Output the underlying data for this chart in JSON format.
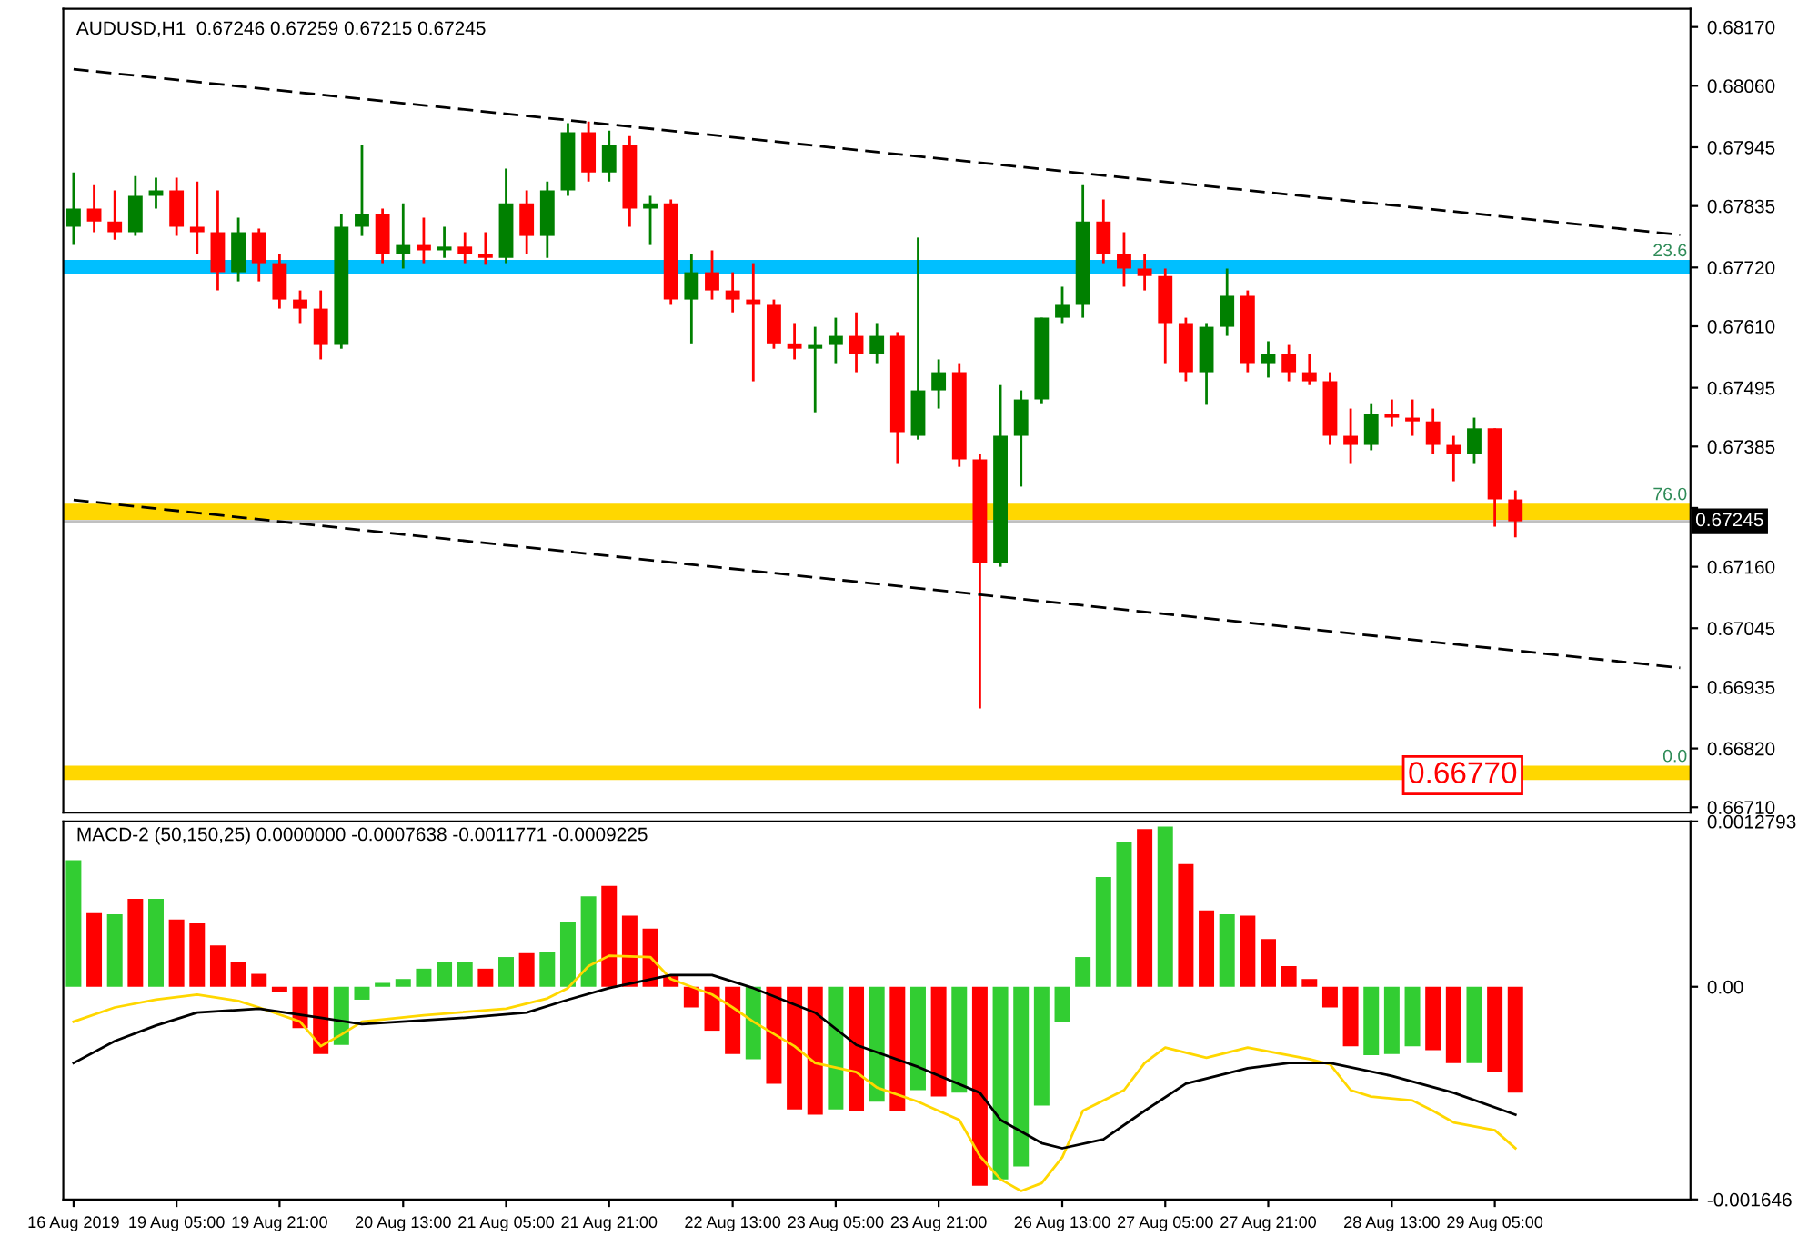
{
  "chart_data": [
    {
      "type": "candlestick",
      "title": "AUDUSD,H1  0.67246 0.67259 0.67215 0.67245",
      "categories": [
        null,
        null,
        null,
        null,
        null,
        null,
        null,
        null,
        null,
        null,
        null,
        null,
        null,
        null,
        null,
        null,
        null,
        null,
        null,
        null,
        null,
        null,
        null,
        null,
        null,
        null,
        null,
        null,
        null,
        null,
        null,
        null,
        null,
        null,
        null,
        null,
        null,
        null,
        null,
        null,
        null,
        null,
        null,
        null,
        null,
        null,
        null,
        null,
        null,
        null,
        null,
        null,
        null,
        null,
        null,
        null,
        null,
        null,
        null,
        null,
        null,
        null,
        null,
        null,
        null,
        null,
        null,
        null,
        null,
        null,
        null,
        null,
        null,
        null,
        null,
        null,
        null,
        null,
        null
      ],
      "ohlc": [
        [
          0.67796,
          0.67898,
          0.67762,
          0.6783
        ],
        [
          0.6783,
          0.67874,
          0.67786,
          0.67806
        ],
        [
          0.67806,
          0.67864,
          0.67772,
          0.67786
        ],
        [
          0.67786,
          0.67891,
          0.67779,
          0.67854
        ],
        [
          0.67854,
          0.67888,
          0.6783,
          0.67864
        ],
        [
          0.67864,
          0.67888,
          0.67779,
          0.67796
        ],
        [
          0.67796,
          0.67881,
          0.67745,
          0.67786
        ],
        [
          0.67786,
          0.67864,
          0.67677,
          0.67711
        ],
        [
          0.67711,
          0.67813,
          0.67694,
          0.67786
        ],
        [
          0.67786,
          0.67793,
          0.67694,
          0.67728
        ],
        [
          0.67728,
          0.67745,
          0.67643,
          0.6766
        ],
        [
          0.6766,
          0.67677,
          0.67616,
          0.67643
        ],
        [
          0.67643,
          0.67677,
          0.67548,
          0.67575
        ],
        [
          0.67575,
          0.6782,
          0.67568,
          0.67796
        ],
        [
          0.67796,
          0.67949,
          0.67779,
          0.6782
        ],
        [
          0.6782,
          0.6783,
          0.67728,
          0.67745
        ],
        [
          0.67745,
          0.6784,
          0.67718,
          0.67762
        ],
        [
          0.67762,
          0.67813,
          0.67728,
          0.67752
        ],
        [
          0.67752,
          0.67796,
          0.67738,
          0.67759
        ],
        [
          0.67759,
          0.67786,
          0.67728,
          0.67745
        ],
        [
          0.67745,
          0.67786,
          0.67725,
          0.67738
        ],
        [
          0.67738,
          0.67905,
          0.67728,
          0.6784
        ],
        [
          0.6784,
          0.67864,
          0.67745,
          0.67779
        ],
        [
          0.67779,
          0.67881,
          0.67738,
          0.67864
        ],
        [
          0.67864,
          0.6799,
          0.67854,
          0.67973
        ],
        [
          0.67973,
          0.67993,
          0.67881,
          0.67898
        ],
        [
          0.67898,
          0.67976,
          0.67881,
          0.67949
        ],
        [
          0.67949,
          0.67966,
          0.67796,
          0.6783
        ],
        [
          0.6783,
          0.67854,
          0.67762,
          0.6784
        ],
        [
          0.6784,
          0.67847,
          0.6765,
          0.6766
        ],
        [
          0.6766,
          0.67745,
          0.67578,
          0.67711
        ],
        [
          0.67711,
          0.67752,
          0.6766,
          0.67677
        ],
        [
          0.67677,
          0.67711,
          0.67636,
          0.6766
        ],
        [
          0.6766,
          0.67728,
          0.67507,
          0.6765
        ],
        [
          0.6765,
          0.6766,
          0.67568,
          0.67578
        ],
        [
          0.67578,
          0.67616,
          0.67548,
          0.67568
        ],
        [
          0.67568,
          0.67609,
          0.67449,
          0.67575
        ],
        [
          0.67575,
          0.67626,
          0.67541,
          0.67592
        ],
        [
          0.67592,
          0.67636,
          0.67524,
          0.67558
        ],
        [
          0.67558,
          0.67616,
          0.67541,
          0.67592
        ],
        [
          0.67592,
          0.67599,
          0.67354,
          0.67412
        ],
        [
          0.67405,
          0.67776,
          0.67398,
          0.6749
        ],
        [
          0.6749,
          0.67548,
          0.67456,
          0.67524
        ],
        [
          0.67524,
          0.67541,
          0.67347,
          0.67361
        ],
        [
          0.67361,
          0.67371,
          0.66895,
          0.67167
        ],
        [
          0.67167,
          0.675,
          0.6716,
          0.67405
        ],
        [
          0.67405,
          0.6749,
          0.6731,
          0.67473
        ],
        [
          0.67473,
          0.67626,
          0.67466,
          0.67626
        ],
        [
          0.67626,
          0.67684,
          0.67616,
          0.6765
        ],
        [
          0.6765,
          0.67874,
          0.67626,
          0.67806
        ],
        [
          0.67806,
          0.67847,
          0.67728,
          0.67745
        ],
        [
          0.67745,
          0.67786,
          0.67684,
          0.67718
        ],
        [
          0.67718,
          0.67745,
          0.67677,
          0.67704
        ],
        [
          0.67704,
          0.67718,
          0.67541,
          0.67616
        ],
        [
          0.67616,
          0.67626,
          0.67507,
          0.67524
        ],
        [
          0.67524,
          0.67616,
          0.67463,
          0.67609
        ],
        [
          0.67609,
          0.67718,
          0.67592,
          0.67667
        ],
        [
          0.67667,
          0.67677,
          0.67524,
          0.67541
        ],
        [
          0.67541,
          0.67582,
          0.67514,
          0.67558
        ],
        [
          0.67558,
          0.67575,
          0.67507,
          0.67524
        ],
        [
          0.67524,
          0.67558,
          0.675,
          0.67507
        ],
        [
          0.67507,
          0.67524,
          0.67388,
          0.67405
        ],
        [
          0.67405,
          0.67456,
          0.67354,
          0.67388
        ],
        [
          0.67388,
          0.67466,
          0.67378,
          0.67446
        ],
        [
          0.67446,
          0.67473,
          0.67422,
          0.67439
        ],
        [
          0.67439,
          0.67473,
          0.67405,
          0.67432
        ],
        [
          0.67432,
          0.67456,
          0.67371,
          0.67388
        ],
        [
          0.67388,
          0.67405,
          0.6732,
          0.67371
        ],
        [
          0.67371,
          0.67439,
          0.67354,
          0.67419
        ],
        [
          0.67419,
          0.67419,
          0.67235,
          0.67286
        ],
        [
          0.67286,
          0.67303,
          0.67215,
          0.67245
        ],
        null,
        null,
        null,
        null,
        null,
        null,
        null,
        null
      ],
      "colors": [
        "#008000",
        "#ff0000",
        "#ff0000",
        "#008000",
        "#008000",
        "#ff0000",
        "#ff0000",
        "#ff0000",
        "#008000",
        "#ff0000",
        "#ff0000",
        "#ff0000",
        "#ff0000",
        "#008000",
        "#008000",
        "#ff0000",
        "#008000",
        "#ff0000",
        "#008000",
        "#ff0000",
        "#ff0000",
        "#008000",
        "#ff0000",
        "#008000",
        "#008000",
        "#ff0000",
        "#008000",
        "#ff0000",
        "#008000",
        "#ff0000",
        "#008000",
        "#ff0000",
        "#ff0000",
        "#ff0000",
        "#ff0000",
        "#ff0000",
        "#008000",
        "#008000",
        "#ff0000",
        "#008000",
        "#ff0000",
        "#008000",
        "#008000",
        "#ff0000",
        "#ff0000",
        "#008000",
        "#008000",
        "#008000",
        "#008000",
        "#008000",
        "#ff0000",
        "#ff0000",
        "#ff0000",
        "#ff0000",
        "#ff0000",
        "#008000",
        "#008000",
        "#ff0000",
        "#008000",
        "#ff0000",
        "#ff0000",
        "#ff0000",
        "#ff0000",
        "#008000",
        "#ff0000",
        "#ff0000",
        "#ff0000",
        "#ff0000",
        "#008000",
        "#ff0000",
        "#ff0000",
        null,
        null,
        null,
        null,
        null,
        null,
        null,
        null
      ],
      "series": [
        {
          "type": "line",
          "color": "#000000",
          "line_style": "dashed",
          "values": [
            0.68091,
            null,
            null,
            null,
            null,
            null,
            null,
            null,
            null,
            null,
            null,
            null,
            null,
            null,
            null,
            null,
            null,
            null,
            null,
            null,
            null,
            null,
            null,
            null,
            null,
            null,
            null,
            null,
            null,
            null,
            null,
            null,
            null,
            null,
            null,
            null,
            null,
            null,
            null,
            null,
            null,
            null,
            null,
            null,
            null,
            null,
            null,
            null,
            null,
            null,
            null,
            null,
            null,
            null,
            null,
            null,
            null,
            null,
            null,
            null,
            null,
            null,
            null,
            null,
            null,
            null,
            null,
            null,
            null,
            null,
            null,
            null,
            null,
            null,
            null,
            null,
            null,
            null,
            0.67781
          ]
        },
        {
          "type": "line",
          "color": "#000000",
          "line_style": "dashed",
          "values": [
            0.67285,
            null,
            null,
            null,
            null,
            null,
            null,
            null,
            null,
            null,
            null,
            null,
            null,
            null,
            null,
            null,
            null,
            null,
            null,
            null,
            null,
            null,
            null,
            null,
            null,
            null,
            null,
            null,
            null,
            null,
            null,
            null,
            null,
            null,
            null,
            null,
            null,
            null,
            null,
            null,
            null,
            null,
            null,
            null,
            null,
            null,
            null,
            null,
            null,
            null,
            null,
            null,
            null,
            null,
            null,
            null,
            null,
            null,
            null,
            null,
            null,
            null,
            null,
            null,
            null,
            null,
            null,
            null,
            null,
            null,
            null,
            null,
            null,
            null,
            null,
            null,
            null,
            null,
            0.66971
          ]
        }
      ],
      "bands": [
        {
          "axis": "y",
          "from": 0.67707,
          "to": 0.67734,
          "label": "23.6",
          "color": "#00bfff"
        },
        {
          "axis": "y",
          "from": 0.67248,
          "to": 0.67278,
          "label": "76.0",
          "color": "#ffd700"
        },
        {
          "axis": "y",
          "from": 0.66761,
          "to": 0.66788,
          "label": "0.0",
          "color": "#ffd700"
        }
      ],
      "ref_lines": [
        {
          "axis": "y",
          "value": 0.67245,
          "label": "0.67245",
          "color": "#c0c0c0"
        }
      ],
      "annotations": [
        {
          "text": "0.66770",
          "y": 0.6677
        }
      ],
      "ylim": [
        0.667,
        0.68204
      ],
      "yticks": [
        {
          "value": 0.6817,
          "label": "0.68170"
        },
        {
          "value": 0.6806,
          "label": "0.68060"
        },
        0.67945,
        0.67835,
        {
          "value": 0.6772,
          "label": "0.67720"
        },
        {
          "value": 0.6761,
          "label": "0.67610"
        },
        0.67495,
        0.67385,
        {
          "value": 0.6727,
          "label": null
        },
        {
          "value": 0.6716,
          "label": "0.67160"
        },
        0.67045,
        0.66935,
        {
          "value": 0.6682,
          "label": "0.66820"
        },
        {
          "value": 0.6671,
          "label": "0.66710"
        }
      ],
      "tick_labels": "y",
      "grid": false,
      "legend": false
    },
    {
      "type": "bar",
      "title": "MACD-2 (50,150,25) 0.0000000 -0.0007638 -0.0011771 -0.0009225",
      "categories": [
        "16 Aug 2019",
        null,
        null,
        null,
        null,
        "19 Aug 05:00",
        null,
        null,
        null,
        null,
        "19 Aug 21:00",
        null,
        null,
        null,
        null,
        null,
        "20 Aug 13:00",
        null,
        null,
        null,
        null,
        "21 Aug 05:00",
        null,
        null,
        null,
        null,
        "21 Aug 21:00",
        null,
        null,
        null,
        null,
        null,
        "22 Aug 13:00",
        null,
        null,
        null,
        null,
        "23 Aug 05:00",
        null,
        null,
        null,
        null,
        "23 Aug 21:00",
        null,
        null,
        null,
        null,
        null,
        "26 Aug 13:00",
        null,
        null,
        null,
        null,
        "27 Aug 05:00",
        null,
        null,
        null,
        null,
        "27 Aug 21:00",
        null,
        null,
        null,
        null,
        null,
        "28 Aug 13:00",
        null,
        null,
        null,
        null,
        "29 Aug 05:00",
        null,
        null,
        null,
        null,
        null,
        null,
        null,
        null,
        null
      ],
      "series": [
        {
          "type": "bar",
          "values": [
            0.00098,
            0.00057,
            0.00056,
            0.00068,
            0.00068,
            0.00052,
            0.00049,
            0.00032,
            0.00019,
            0.0001,
            -4e-05,
            -0.00032,
            -0.00052,
            -0.00045,
            -0.0001,
            3e-05,
            6e-05,
            0.00014,
            0.00019,
            0.00019,
            0.00014,
            0.00023,
            0.00026,
            0.00027,
            0.0005,
            0.0007,
            0.00078,
            0.00055,
            0.00045,
            9e-05,
            -0.00016,
            -0.00034,
            -0.00052,
            -0.00056,
            -0.00075,
            -0.00095,
            -0.00099,
            -0.00095,
            -0.00096,
            -0.00089,
            -0.00096,
            -0.0008,
            -0.00085,
            -0.00082,
            -0.00154,
            -0.00149,
            -0.00139,
            -0.00092,
            -0.00027,
            0.00023,
            0.00085,
            0.00112,
            0.00122,
            0.00124,
            0.00095,
            0.00059,
            0.00056,
            0.00055,
            0.00037,
            0.00016,
            6e-05,
            -0.00016,
            -0.00046,
            -0.00053,
            -0.00052,
            -0.00046,
            -0.00049,
            -0.00059,
            -0.00059,
            -0.00066,
            -0.00082,
            null,
            null,
            null,
            null,
            null,
            null,
            null,
            null
          ],
          "colors": [
            "#32cd32",
            "#ff0000",
            "#32cd32",
            "#ff0000",
            "#32cd32",
            "#ff0000",
            "#ff0000",
            "#ff0000",
            "#ff0000",
            "#ff0000",
            "#ff0000",
            "#ff0000",
            "#ff0000",
            "#32cd32",
            "#32cd32",
            "#32cd32",
            "#32cd32",
            "#32cd32",
            "#32cd32",
            "#32cd32",
            "#ff0000",
            "#32cd32",
            "#ff0000",
            "#32cd32",
            "#32cd32",
            "#32cd32",
            "#ff0000",
            "#ff0000",
            "#ff0000",
            "#ff0000",
            "#ff0000",
            "#ff0000",
            "#ff0000",
            "#32cd32",
            "#ff0000",
            "#ff0000",
            "#ff0000",
            "#32cd32",
            "#ff0000",
            "#32cd32",
            "#ff0000",
            "#32cd32",
            "#ff0000",
            "#32cd32",
            "#ff0000",
            "#32cd32",
            "#32cd32",
            "#32cd32",
            "#32cd32",
            "#32cd32",
            "#32cd32",
            "#32cd32",
            "#ff0000",
            "#32cd32",
            "#ff0000",
            "#ff0000",
            "#32cd32",
            "#ff0000",
            "#ff0000",
            "#ff0000",
            "#ff0000",
            "#ff0000",
            "#ff0000",
            "#32cd32",
            "#32cd32",
            "#32cd32",
            "#ff0000",
            "#ff0000",
            "#32cd32",
            "#ff0000",
            "#ff0000",
            null,
            null,
            null,
            null,
            null,
            null,
            null,
            null
          ]
        },
        {
          "type": "line",
          "color": "#ffd700",
          "values": [
            -0.00027,
            null,
            -0.00016,
            null,
            -0.0001,
            null,
            -6e-05,
            null,
            -0.00011,
            -0.00016,
            null,
            -0.00027,
            -0.00046,
            -0.00037,
            -0.00027,
            null,
            null,
            -0.00022,
            null,
            null,
            null,
            -0.00017,
            null,
            -9e-05,
            -1e-05,
            0.00016,
            0.00024,
            null,
            0.00023,
            6e-05,
            null,
            -6e-05,
            -0.00016,
            -0.00027,
            null,
            -0.00046,
            -0.00059,
            null,
            -0.00066,
            -0.00078,
            null,
            -0.00089,
            null,
            -0.00103,
            -0.00131,
            -0.00149,
            -0.00158,
            -0.00152,
            -0.00132,
            -0.00096,
            null,
            -0.0008,
            -0.00059,
            -0.00047,
            null,
            -0.00055,
            null,
            -0.00047,
            null,
            null,
            -0.00056,
            -0.0006,
            -0.0008,
            -0.00085,
            null,
            -0.00088,
            -0.00096,
            -0.00105,
            null,
            -0.00111,
            -0.00125,
            null,
            null,
            null,
            null,
            null,
            null,
            null,
            null
          ]
        },
        {
          "type": "line",
          "color": "#000000",
          "values": [
            -0.00059,
            null,
            -0.00042,
            null,
            -0.0003,
            null,
            -0.0002,
            null,
            null,
            -0.00017,
            null,
            null,
            -0.00024,
            null,
            -0.00029,
            null,
            null,
            null,
            null,
            -0.00024,
            null,
            null,
            -0.0002,
            null,
            -0.0001,
            null,
            -1e-05,
            null,
            null,
            9e-05,
            null,
            9e-05,
            null,
            -1e-05,
            null,
            null,
            -0.0002,
            null,
            -0.00045,
            null,
            null,
            -0.00062,
            null,
            null,
            -0.00082,
            -0.00103,
            null,
            -0.00121,
            -0.00125,
            null,
            -0.00118,
            null,
            -0.00096,
            null,
            -0.00075,
            null,
            null,
            -0.00063,
            null,
            -0.00059,
            null,
            -0.00059,
            null,
            null,
            -0.00069,
            null,
            null,
            -0.00082,
            null,
            null,
            -0.00099,
            null,
            null,
            null,
            null,
            null,
            null,
            null,
            null
          ]
        }
      ],
      "ylim": [
        -0.001646,
        0.0012793
      ],
      "yticks": [
        0.0012793,
        {
          "value": 0,
          "label": "0.00"
        },
        -0.001646
      ],
      "grid": false,
      "legend": false
    }
  ]
}
